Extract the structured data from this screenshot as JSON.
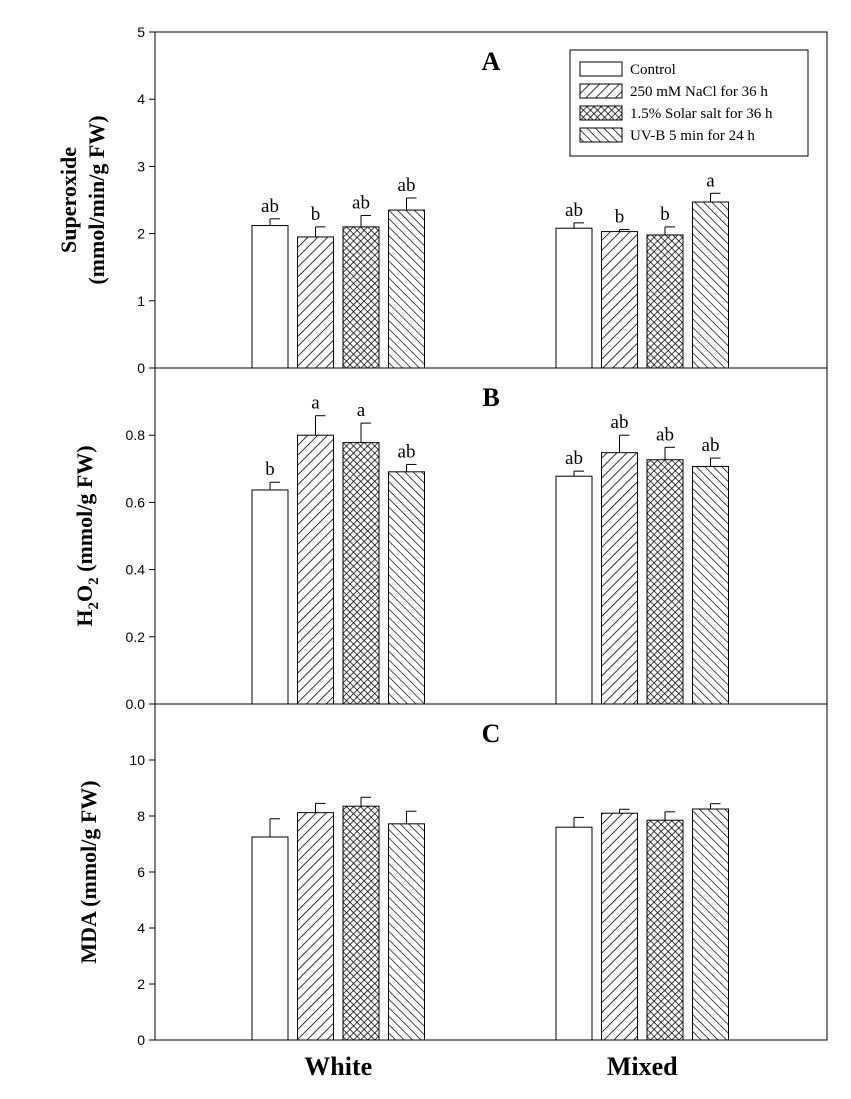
{
  "chart_data": [
    {
      "type": "bar",
      "panel_label": "A",
      "ylabel_line1": "Superoxide",
      "ylabel_line2": "(mmol/min/g FW)",
      "ylim": [
        0,
        5
      ],
      "yticks": [
        "0",
        "1",
        "2",
        "3",
        "4",
        "5"
      ],
      "categories": [
        "White",
        "Mixed"
      ],
      "series": [
        {
          "name": "Control",
          "values": [
            2.12,
            2.08
          ],
          "errors": [
            0.1,
            0.08
          ],
          "letters": [
            "ab",
            "ab"
          ]
        },
        {
          "name": "250 mM NaCl for 36 h",
          "values": [
            1.95,
            2.03
          ],
          "errors": [
            0.15,
            0.03
          ],
          "letters": [
            "b",
            "b"
          ]
        },
        {
          "name": "1.5% Solar salt for 36 h",
          "values": [
            2.1,
            1.98
          ],
          "errors": [
            0.17,
            0.12
          ],
          "letters": [
            "ab",
            "b"
          ]
        },
        {
          "name": "UV-B  5 min for 24 h",
          "values": [
            2.35,
            2.47
          ],
          "errors": [
            0.18,
            0.13
          ],
          "letters": [
            "ab",
            "a"
          ]
        }
      ],
      "legend_position": "top-right"
    },
    {
      "type": "bar",
      "panel_label": "B",
      "ylabel_parts": [
        "H",
        "2",
        "O",
        "2",
        " (mmol/g FW)"
      ],
      "ylim": [
        0,
        1.0
      ],
      "yticks": [
        "0.0",
        "0.2",
        "0.4",
        "0.6",
        "0.8"
      ],
      "categories": [
        "White",
        "Mixed"
      ],
      "series": [
        {
          "name": "Control",
          "values": [
            0.637,
            0.678
          ],
          "errors": [
            0.023,
            0.015
          ],
          "letters": [
            "b",
            "ab"
          ]
        },
        {
          "name": "250 mM NaCl for 36 h",
          "values": [
            0.8,
            0.748
          ],
          "errors": [
            0.058,
            0.052
          ],
          "letters": [
            "a",
            "ab"
          ]
        },
        {
          "name": "1.5% Solar salt for 36 h",
          "values": [
            0.778,
            0.727
          ],
          "errors": [
            0.058,
            0.037
          ],
          "letters": [
            "a",
            "ab"
          ]
        },
        {
          "name": "UV-B  5 min for 24 h",
          "values": [
            0.691,
            0.707
          ],
          "errors": [
            0.022,
            0.025
          ],
          "letters": [
            "ab",
            "ab"
          ]
        }
      ]
    },
    {
      "type": "bar",
      "panel_label": "C",
      "ylabel": "MDA (mmol/g FW)",
      "ylim": [
        0,
        12
      ],
      "yticks": [
        "0",
        "2",
        "4",
        "6",
        "8",
        "10"
      ],
      "categories": [
        "White",
        "Mixed"
      ],
      "series": [
        {
          "name": "Control",
          "values": [
            7.25,
            7.6
          ],
          "errors": [
            0.65,
            0.35
          ]
        },
        {
          "name": "250 mM NaCl for 36 h",
          "values": [
            8.12,
            8.1
          ],
          "errors": [
            0.33,
            0.14
          ]
        },
        {
          "name": "1.5% Solar salt for 36 h",
          "values": [
            8.35,
            7.85
          ],
          "errors": [
            0.32,
            0.3
          ]
        },
        {
          "name": "UV-B  5 min for 24 h",
          "values": [
            7.72,
            8.25
          ],
          "errors": [
            0.45,
            0.19
          ]
        }
      ]
    }
  ],
  "series_patterns": [
    "none",
    "diag-right",
    "crosshatch",
    "diag-left"
  ]
}
